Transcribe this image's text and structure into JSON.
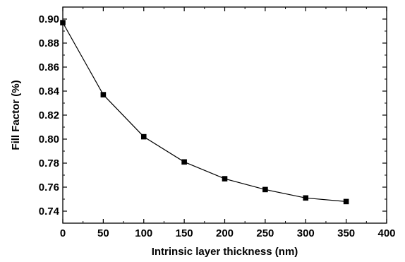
{
  "chart_data": {
    "type": "line",
    "title": "",
    "xlabel": "Intrinsic layer thickness (nm)",
    "ylabel": "Fill Factor (%)",
    "xlim": [
      0,
      400
    ],
    "ylim": [
      0.73,
      0.91
    ],
    "x_ticks": [
      "0",
      "50",
      "100",
      "150",
      "200",
      "250",
      "300",
      "350",
      "400"
    ],
    "y_ticks": [
      "0.74",
      "0.76",
      "0.78",
      "0.80",
      "0.82",
      "0.84",
      "0.86",
      "0.88",
      "0.90"
    ],
    "grid": false,
    "legend": "none",
    "marker": "square",
    "series": [
      {
        "x": [
          0,
          50,
          100,
          150,
          200,
          250,
          300,
          350
        ],
        "y": [
          0.897,
          0.837,
          0.802,
          0.781,
          0.767,
          0.758,
          0.751,
          0.748
        ]
      }
    ],
    "colors": {
      "line": "#000000",
      "marker": "#000000"
    }
  }
}
